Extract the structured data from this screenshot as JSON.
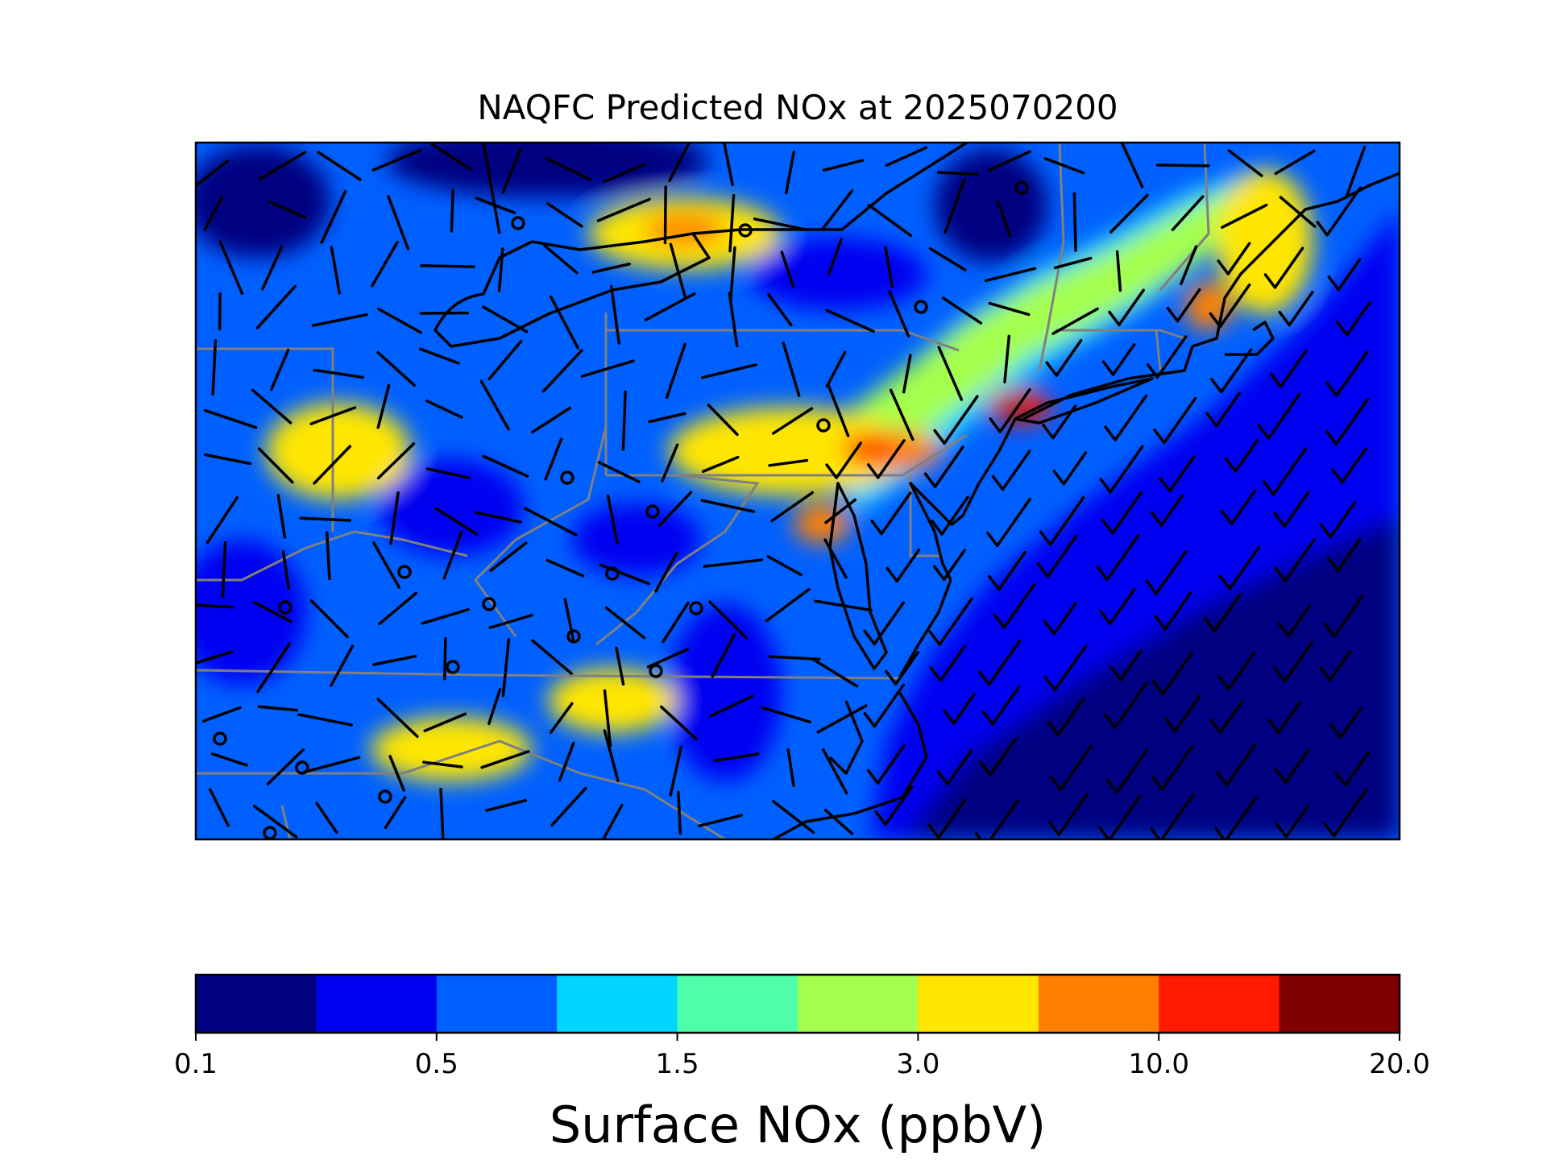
{
  "title": "NAQFC Predicted NOx at 2025070200",
  "colorbar": {
    "label": "Surface NOx (ppbV)",
    "colors": [
      "#000080",
      "#0000f1",
      "#0060ff",
      "#00d5ff",
      "#4effa9",
      "#a4ff4e",
      "#ffe600",
      "#ff8000",
      "#ff1a00",
      "#800000"
    ],
    "tick_labels": [
      "0.1",
      "0.5",
      "1.5",
      "3.0",
      "10.0",
      "20.0"
    ]
  },
  "map": {
    "region": "US Mid-Atlantic and Northeast",
    "colors": {
      "coastline": "#000000",
      "state_borders": "#808080",
      "wind_barbs": "#000000",
      "station_markers": "#000000"
    }
  }
}
